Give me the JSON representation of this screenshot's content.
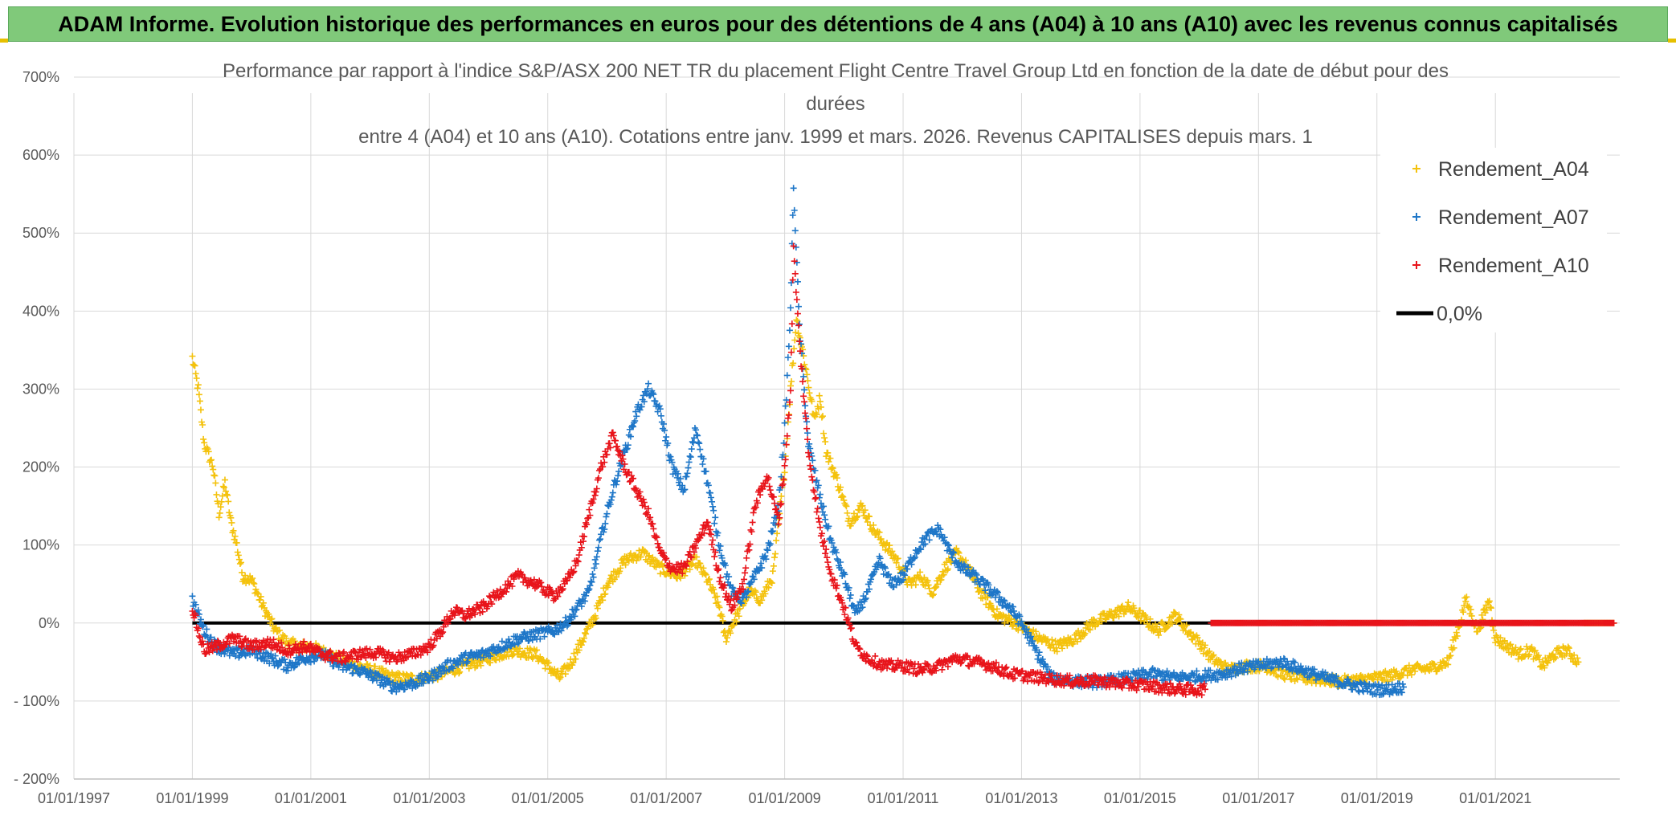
{
  "banner": {
    "text": "ADAM Informe. Evolution historique des performances en euros pour des détentions de 4 ans (A04) à 10 ans (A10) avec les revenus connus capitalisés"
  },
  "colors": {
    "banner_bg": "#80c97a",
    "a04": "#f4c20d",
    "a07": "#1f77c8",
    "a10": "#e8141b",
    "zero": "#000000",
    "grid": "#d9d9d9"
  },
  "chart_data": {
    "type": "scatter",
    "title_lines": [
      "Performance par rapport à l'indice S&P/ASX 200 NET TR  du placement Flight Centre Travel Group Ltd en fonction de la date de début pour des",
      "durées",
      "entre 4 (A04) et 10 ans (A10). Cotations entre janv. 1999 et mars. 2026. Revenus CAPITALISES depuis mars. 1"
    ],
    "y_tick_labels": [
      "700%",
      "600%",
      "500%",
      "400%",
      "300%",
      "200%",
      "100%",
      "0%",
      "- 100%",
      "- 200%"
    ],
    "y_tick_values": [
      700,
      600,
      500,
      400,
      300,
      200,
      100,
      0,
      -100,
      -200
    ],
    "x_tick_labels": [
      "01/01/1997",
      "01/01/1999",
      "01/01/2001",
      "01/01/2003",
      "01/01/2005",
      "01/01/2007",
      "01/01/2009",
      "01/01/2011",
      "01/01/2013",
      "01/01/2015",
      "01/01/2017",
      "01/01/2019",
      "01/01/2021"
    ],
    "x_tick_years": [
      1997,
      1999,
      2001,
      2003,
      2005,
      2007,
      2009,
      2011,
      2013,
      2015,
      2017,
      2019,
      2021
    ],
    "xlim": [
      1997,
      2023.1
    ],
    "ylim": [
      -200,
      700
    ],
    "legend": [
      {
        "key": "a04",
        "label": "Rendement_A04"
      },
      {
        "key": "a07",
        "label": "Rendement_A07"
      },
      {
        "key": "a10",
        "label": "Rendement_A10"
      },
      {
        "key": "zero",
        "label": "0,0%"
      }
    ],
    "series": [
      {
        "name": "Rendement_A04",
        "key": "a04",
        "points": [
          [
            1999.0,
            340
          ],
          [
            1999.1,
            300
          ],
          [
            1999.2,
            230
          ],
          [
            1999.35,
            200
          ],
          [
            1999.45,
            140
          ],
          [
            1999.55,
            180
          ],
          [
            1999.65,
            130
          ],
          [
            1999.75,
            100
          ],
          [
            1999.85,
            60
          ],
          [
            2000.0,
            55
          ],
          [
            2000.2,
            20
          ],
          [
            2000.4,
            -10
          ],
          [
            2000.6,
            -25
          ],
          [
            2000.8,
            -30
          ],
          [
            2001.0,
            -30
          ],
          [
            2001.3,
            -40
          ],
          [
            2001.6,
            -50
          ],
          [
            2002.0,
            -60
          ],
          [
            2002.4,
            -70
          ],
          [
            2002.8,
            -72
          ],
          [
            2003.2,
            -65
          ],
          [
            2003.6,
            -55
          ],
          [
            2004.0,
            -45
          ],
          [
            2004.4,
            -35
          ],
          [
            2004.8,
            -40
          ],
          [
            2005.0,
            -55
          ],
          [
            2005.2,
            -70
          ],
          [
            2005.4,
            -50
          ],
          [
            2005.6,
            -20
          ],
          [
            2005.8,
            10
          ],
          [
            2006.0,
            50
          ],
          [
            2006.3,
            80
          ],
          [
            2006.6,
            90
          ],
          [
            2006.9,
            70
          ],
          [
            2007.2,
            60
          ],
          [
            2007.5,
            80
          ],
          [
            2007.7,
            55
          ],
          [
            2007.9,
            20
          ],
          [
            2008.0,
            -20
          ],
          [
            2008.2,
            10
          ],
          [
            2008.4,
            40
          ],
          [
            2008.6,
            30
          ],
          [
            2008.8,
            60
          ],
          [
            2009.0,
            200
          ],
          [
            2009.1,
            300
          ],
          [
            2009.2,
            390
          ],
          [
            2009.35,
            330
          ],
          [
            2009.5,
            260
          ],
          [
            2009.6,
            290
          ],
          [
            2009.7,
            220
          ],
          [
            2009.9,
            180
          ],
          [
            2010.1,
            130
          ],
          [
            2010.3,
            150
          ],
          [
            2010.5,
            120
          ],
          [
            2010.7,
            100
          ],
          [
            2010.9,
            80
          ],
          [
            2011.1,
            50
          ],
          [
            2011.3,
            60
          ],
          [
            2011.5,
            40
          ],
          [
            2011.7,
            70
          ],
          [
            2011.9,
            90
          ],
          [
            2012.1,
            70
          ],
          [
            2012.3,
            40
          ],
          [
            2012.6,
            10
          ],
          [
            2012.9,
            0
          ],
          [
            2013.1,
            -10
          ],
          [
            2013.3,
            -20
          ],
          [
            2013.6,
            -30
          ],
          [
            2013.9,
            -20
          ],
          [
            2014.2,
            0
          ],
          [
            2014.5,
            10
          ],
          [
            2014.8,
            20
          ],
          [
            2015.0,
            10
          ],
          [
            2015.3,
            -10
          ],
          [
            2015.6,
            10
          ],
          [
            2015.8,
            -10
          ],
          [
            2016.0,
            -25
          ],
          [
            2016.2,
            -45
          ],
          [
            2016.5,
            -60
          ],
          [
            2016.8,
            -55
          ],
          [
            2017.1,
            -55
          ],
          [
            2017.4,
            -65
          ],
          [
            2017.7,
            -70
          ],
          [
            2018.0,
            -72
          ],
          [
            2018.4,
            -75
          ],
          [
            2018.8,
            -72
          ],
          [
            2019.2,
            -68
          ],
          [
            2019.6,
            -60
          ],
          [
            2019.9,
            -58
          ],
          [
            2020.2,
            -50
          ],
          [
            2020.4,
            0
          ],
          [
            2020.5,
            30
          ],
          [
            2020.7,
            -10
          ],
          [
            2020.9,
            30
          ],
          [
            2021.0,
            -20
          ],
          [
            2021.2,
            -30
          ],
          [
            2021.4,
            -40
          ],
          [
            2021.6,
            -35
          ],
          [
            2021.8,
            -55
          ],
          [
            2022.0,
            -40
          ],
          [
            2022.2,
            -35
          ],
          [
            2022.4,
            -50
          ]
        ]
      },
      {
        "name": "Rendement_A07",
        "key": "a07",
        "points": [
          [
            1999.0,
            30
          ],
          [
            1999.1,
            10
          ],
          [
            1999.2,
            -10
          ],
          [
            1999.4,
            -30
          ],
          [
            1999.7,
            -40
          ],
          [
            2000.0,
            -35
          ],
          [
            2000.3,
            -45
          ],
          [
            2000.6,
            -55
          ],
          [
            2000.9,
            -45
          ],
          [
            2001.2,
            -40
          ],
          [
            2001.5,
            -55
          ],
          [
            2001.8,
            -60
          ],
          [
            2002.1,
            -70
          ],
          [
            2002.4,
            -82
          ],
          [
            2002.7,
            -78
          ],
          [
            2003.0,
            -70
          ],
          [
            2003.3,
            -55
          ],
          [
            2003.6,
            -45
          ],
          [
            2003.9,
            -40
          ],
          [
            2004.2,
            -30
          ],
          [
            2004.5,
            -20
          ],
          [
            2004.8,
            -15
          ],
          [
            2005.1,
            -10
          ],
          [
            2005.3,
            0
          ],
          [
            2005.5,
            20
          ],
          [
            2005.7,
            40
          ],
          [
            2005.9,
            110
          ],
          [
            2006.1,
            170
          ],
          [
            2006.3,
            220
          ],
          [
            2006.5,
            270
          ],
          [
            2006.7,
            300
          ],
          [
            2006.9,
            270
          ],
          [
            2007.1,
            200
          ],
          [
            2007.3,
            170
          ],
          [
            2007.5,
            250
          ],
          [
            2007.7,
            180
          ],
          [
            2007.9,
            100
          ],
          [
            2008.1,
            40
          ],
          [
            2008.3,
            30
          ],
          [
            2008.5,
            60
          ],
          [
            2008.7,
            90
          ],
          [
            2008.9,
            150
          ],
          [
            2009.0,
            250
          ],
          [
            2009.1,
            400
          ],
          [
            2009.15,
            560
          ],
          [
            2009.25,
            380
          ],
          [
            2009.4,
            230
          ],
          [
            2009.6,
            160
          ],
          [
            2009.8,
            100
          ],
          [
            2010.0,
            60
          ],
          [
            2010.2,
            10
          ],
          [
            2010.4,
            40
          ],
          [
            2010.6,
            80
          ],
          [
            2010.8,
            50
          ],
          [
            2011.0,
            60
          ],
          [
            2011.2,
            90
          ],
          [
            2011.4,
            110
          ],
          [
            2011.6,
            120
          ],
          [
            2011.8,
            90
          ],
          [
            2012.0,
            70
          ],
          [
            2012.2,
            60
          ],
          [
            2012.5,
            40
          ],
          [
            2012.8,
            20
          ],
          [
            2013.0,
            0
          ],
          [
            2013.2,
            -30
          ],
          [
            2013.5,
            -70
          ],
          [
            2013.9,
            -75
          ],
          [
            2014.3,
            -76
          ],
          [
            2014.8,
            -70
          ],
          [
            2015.2,
            -65
          ],
          [
            2015.6,
            -70
          ],
          [
            2016.0,
            -68
          ],
          [
            2016.4,
            -65
          ],
          [
            2016.7,
            -58
          ],
          [
            2017.0,
            -55
          ],
          [
            2017.4,
            -50
          ],
          [
            2017.8,
            -62
          ],
          [
            2018.2,
            -72
          ],
          [
            2018.6,
            -80
          ],
          [
            2018.9,
            -85
          ],
          [
            2019.2,
            -85
          ],
          [
            2019.45,
            -82
          ]
        ]
      },
      {
        "name": "Rendement_A10",
        "key": "a10",
        "points": [
          [
            1999.0,
            20
          ],
          [
            1999.1,
            -10
          ],
          [
            1999.2,
            -35
          ],
          [
            1999.4,
            -30
          ],
          [
            1999.7,
            -20
          ],
          [
            2000.0,
            -30
          ],
          [
            2000.3,
            -25
          ],
          [
            2000.6,
            -35
          ],
          [
            2000.9,
            -30
          ],
          [
            2001.2,
            -40
          ],
          [
            2001.5,
            -45
          ],
          [
            2001.8,
            -40
          ],
          [
            2002.1,
            -38
          ],
          [
            2002.4,
            -45
          ],
          [
            2002.7,
            -40
          ],
          [
            2003.0,
            -30
          ],
          [
            2003.2,
            -10
          ],
          [
            2003.4,
            15
          ],
          [
            2003.6,
            10
          ],
          [
            2003.9,
            20
          ],
          [
            2004.2,
            40
          ],
          [
            2004.5,
            60
          ],
          [
            2004.8,
            50
          ],
          [
            2005.1,
            35
          ],
          [
            2005.3,
            50
          ],
          [
            2005.5,
            80
          ],
          [
            2005.7,
            140
          ],
          [
            2005.9,
            200
          ],
          [
            2006.1,
            240
          ],
          [
            2006.3,
            200
          ],
          [
            2006.5,
            170
          ],
          [
            2006.7,
            140
          ],
          [
            2006.9,
            90
          ],
          [
            2007.1,
            70
          ],
          [
            2007.3,
            70
          ],
          [
            2007.5,
            100
          ],
          [
            2007.7,
            130
          ],
          [
            2007.9,
            60
          ],
          [
            2008.1,
            20
          ],
          [
            2008.3,
            50
          ],
          [
            2008.5,
            150
          ],
          [
            2008.7,
            190
          ],
          [
            2008.9,
            130
          ],
          [
            2009.0,
            200
          ],
          [
            2009.1,
            300
          ],
          [
            2009.15,
            480
          ],
          [
            2009.25,
            360
          ],
          [
            2009.4,
            220
          ],
          [
            2009.6,
            120
          ],
          [
            2009.8,
            60
          ],
          [
            2010.0,
            20
          ],
          [
            2010.2,
            -30
          ],
          [
            2010.4,
            -45
          ],
          [
            2010.7,
            -55
          ],
          [
            2011.0,
            -55
          ],
          [
            2011.3,
            -60
          ],
          [
            2011.6,
            -55
          ],
          [
            2011.9,
            -45
          ],
          [
            2012.2,
            -50
          ],
          [
            2012.5,
            -55
          ],
          [
            2012.8,
            -65
          ],
          [
            2013.1,
            -68
          ],
          [
            2013.5,
            -72
          ],
          [
            2013.9,
            -75
          ],
          [
            2014.3,
            -74
          ],
          [
            2014.7,
            -78
          ],
          [
            2015.1,
            -80
          ],
          [
            2015.5,
            -84
          ],
          [
            2015.9,
            -86
          ],
          [
            2016.1,
            -85
          ]
        ]
      }
    ],
    "a10_flat_segment": {
      "from_year": 2016.2,
      "to_year": 2023.0,
      "value": 0
    },
    "a04_flat_segment": {
      "from_year": 2022.5,
      "to_year": 2023.0,
      "value": 0
    }
  }
}
